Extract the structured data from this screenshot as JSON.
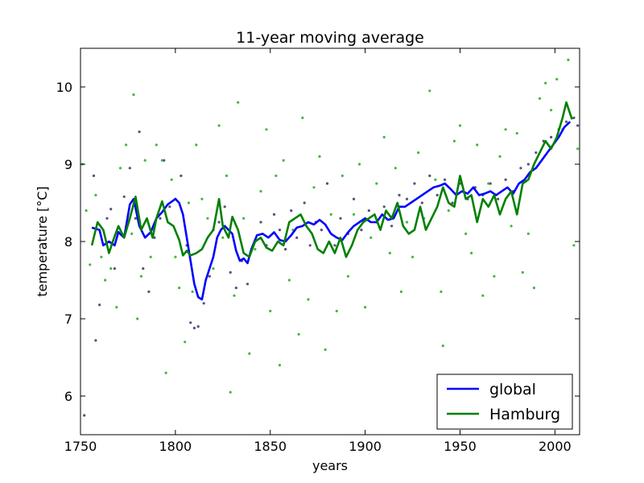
{
  "chart_data": {
    "type": "line",
    "title": "11-year moving average",
    "xlabel": "years",
    "ylabel": "temperature [°C]",
    "xlim": [
      1750,
      2013
    ],
    "ylim": [
      5.5,
      10.5
    ],
    "x_ticks": [
      "1750",
      "1800",
      "1850",
      "1900",
      "1950",
      "2000"
    ],
    "y_ticks": [
      "6",
      "7",
      "8",
      "9",
      "10"
    ],
    "grid": false,
    "legend_position": "lower-right",
    "series": [
      {
        "name": "global",
        "color": "#0000ff",
        "x": [
          1756,
          1760,
          1762,
          1765,
          1768,
          1770,
          1773,
          1776,
          1778,
          1781,
          1784,
          1787,
          1790,
          1793,
          1796,
          1800,
          1802,
          1804,
          1806,
          1808,
          1810,
          1812,
          1814,
          1816,
          1818,
          1820,
          1822,
          1824,
          1826,
          1828,
          1830,
          1832,
          1834,
          1836,
          1838,
          1840,
          1843,
          1846,
          1849,
          1852,
          1855,
          1858,
          1861,
          1864,
          1867,
          1870,
          1873,
          1876,
          1879,
          1882,
          1885,
          1888,
          1891,
          1894,
          1897,
          1900,
          1903,
          1906,
          1909,
          1912,
          1915,
          1918,
          1921,
          1924,
          1927,
          1930,
          1933,
          1936,
          1939,
          1942,
          1945,
          1948,
          1951,
          1954,
          1957,
          1960,
          1963,
          1966,
          1969,
          1972,
          1975,
          1978,
          1981,
          1984,
          1987,
          1990,
          1993,
          1996,
          1999,
          2002,
          2005,
          2008
        ],
        "values": [
          8.18,
          8.15,
          7.95,
          8.0,
          7.95,
          8.12,
          8.05,
          8.48,
          8.55,
          8.2,
          8.05,
          8.12,
          8.3,
          8.38,
          8.48,
          8.55,
          8.5,
          8.35,
          8.05,
          7.75,
          7.45,
          7.28,
          7.25,
          7.5,
          7.65,
          7.8,
          8.05,
          8.15,
          8.2,
          8.15,
          8.1,
          7.88,
          7.75,
          7.78,
          7.72,
          7.9,
          8.08,
          8.1,
          8.05,
          8.12,
          8.02,
          8.0,
          8.08,
          8.18,
          8.2,
          8.25,
          8.22,
          8.28,
          8.22,
          8.1,
          8.05,
          8.02,
          8.12,
          8.2,
          8.25,
          8.3,
          8.25,
          8.25,
          8.35,
          8.28,
          8.3,
          8.45,
          8.45,
          8.5,
          8.55,
          8.6,
          8.65,
          8.7,
          8.72,
          8.75,
          8.68,
          8.6,
          8.65,
          8.62,
          8.7,
          8.6,
          8.62,
          8.65,
          8.6,
          8.65,
          8.7,
          8.62,
          8.75,
          8.8,
          8.9,
          8.95,
          9.05,
          9.15,
          9.25,
          9.35,
          9.48,
          9.55
        ]
      },
      {
        "name": "Hamburg",
        "color": "#008000",
        "x": [
          1756,
          1759,
          1762,
          1765,
          1767,
          1770,
          1773,
          1776,
          1779,
          1782,
          1785,
          1788,
          1790,
          1793,
          1796,
          1799,
          1802,
          1804,
          1806,
          1808,
          1811,
          1814,
          1817,
          1820,
          1823,
          1825,
          1828,
          1830,
          1833,
          1836,
          1839,
          1842,
          1845,
          1848,
          1851,
          1854,
          1857,
          1860,
          1863,
          1866,
          1869,
          1872,
          1875,
          1878,
          1881,
          1884,
          1887,
          1890,
          1893,
          1896,
          1899,
          1902,
          1905,
          1908,
          1911,
          1914,
          1917,
          1920,
          1923,
          1926,
          1929,
          1932,
          1935,
          1938,
          1941,
          1944,
          1947,
          1950,
          1953,
          1956,
          1959,
          1962,
          1965,
          1968,
          1971,
          1974,
          1977,
          1980,
          1983,
          1986,
          1989,
          1992,
          1995,
          1998,
          2001,
          2004,
          2006,
          2009
        ],
        "values": [
          7.95,
          8.25,
          8.15,
          7.85,
          8.0,
          8.2,
          8.05,
          8.3,
          8.58,
          8.15,
          8.3,
          8.05,
          8.3,
          8.52,
          8.25,
          8.2,
          8.02,
          7.82,
          7.88,
          7.82,
          7.85,
          7.9,
          8.05,
          8.15,
          8.55,
          8.2,
          8.05,
          8.32,
          8.15,
          7.85,
          7.8,
          8.0,
          8.05,
          7.92,
          7.88,
          8.0,
          7.95,
          8.25,
          8.3,
          8.35,
          8.2,
          8.1,
          7.9,
          7.85,
          8.0,
          7.85,
          8.05,
          7.8,
          7.95,
          8.15,
          8.25,
          8.3,
          8.35,
          8.15,
          8.4,
          8.3,
          8.5,
          8.2,
          8.1,
          8.15,
          8.45,
          8.15,
          8.3,
          8.45,
          8.7,
          8.5,
          8.45,
          8.85,
          8.55,
          8.6,
          8.25,
          8.55,
          8.45,
          8.6,
          8.35,
          8.55,
          8.65,
          8.35,
          8.75,
          8.8,
          9.0,
          9.15,
          9.3,
          9.2,
          9.35,
          9.6,
          9.8,
          9.58
        ]
      }
    ],
    "scatter_series": [
      {
        "color": "#333366",
        "points": [
          [
            1752,
            5.75
          ],
          [
            1757,
            8.85
          ],
          [
            1758,
            6.72
          ],
          [
            1760,
            7.18
          ],
          [
            1764,
            8.3
          ],
          [
            1766,
            8.42
          ],
          [
            1768,
            7.65
          ],
          [
            1770,
            8.12
          ],
          [
            1773,
            8.58
          ],
          [
            1776,
            8.95
          ],
          [
            1779,
            8.3
          ],
          [
            1781,
            9.42
          ],
          [
            1783,
            7.65
          ],
          [
            1786,
            7.35
          ],
          [
            1789,
            8.05
          ],
          [
            1792,
            8.3
          ],
          [
            1794,
            9.05
          ],
          [
            1797,
            8.45
          ],
          [
            1800,
            8.55
          ],
          [
            1803,
            8.85
          ],
          [
            1806,
            7.95
          ],
          [
            1808,
            6.95
          ],
          [
            1810,
            6.88
          ],
          [
            1812,
            6.9
          ],
          [
            1815,
            7.2
          ],
          [
            1818,
            7.55
          ],
          [
            1820,
            8.15
          ],
          [
            1823,
            8.25
          ],
          [
            1826,
            8.45
          ],
          [
            1829,
            7.6
          ],
          [
            1832,
            7.4
          ],
          [
            1835,
            7.75
          ],
          [
            1838,
            7.45
          ],
          [
            1842,
            8.0
          ],
          [
            1845,
            8.25
          ],
          [
            1848,
            7.95
          ],
          [
            1852,
            8.35
          ],
          [
            1855,
            8.15
          ],
          [
            1858,
            7.9
          ],
          [
            1861,
            8.4
          ],
          [
            1864,
            8.05
          ],
          [
            1868,
            8.5
          ],
          [
            1871,
            7.95
          ],
          [
            1874,
            8.25
          ],
          [
            1877,
            8.15
          ],
          [
            1880,
            8.75
          ],
          [
            1884,
            7.95
          ],
          [
            1887,
            8.3
          ],
          [
            1891,
            8.1
          ],
          [
            1894,
            8.55
          ],
          [
            1898,
            8.15
          ],
          [
            1902,
            8.4
          ],
          [
            1906,
            8.25
          ],
          [
            1910,
            8.45
          ],
          [
            1914,
            8.2
          ],
          [
            1918,
            8.6
          ],
          [
            1922,
            8.55
          ],
          [
            1926,
            8.75
          ],
          [
            1930,
            8.5
          ],
          [
            1934,
            8.85
          ],
          [
            1938,
            8.6
          ],
          [
            1942,
            8.8
          ],
          [
            1946,
            8.5
          ],
          [
            1950,
            8.75
          ],
          [
            1954,
            8.55
          ],
          [
            1958,
            8.7
          ],
          [
            1962,
            8.6
          ],
          [
            1966,
            8.75
          ],
          [
            1970,
            8.55
          ],
          [
            1974,
            8.8
          ],
          [
            1978,
            8.65
          ],
          [
            1982,
            8.95
          ],
          [
            1986,
            9.0
          ],
          [
            1990,
            9.15
          ],
          [
            1994,
            9.3
          ],
          [
            1998,
            9.35
          ],
          [
            2002,
            9.45
          ],
          [
            2006,
            9.55
          ],
          [
            2010,
            9.6
          ],
          [
            2012,
            9.5
          ]
        ]
      },
      {
        "color": "#22aa22",
        "points": [
          [
            1751,
            9.0
          ],
          [
            1753,
            8.4
          ],
          [
            1755,
            7.7
          ],
          [
            1758,
            8.6
          ],
          [
            1761,
            7.8
          ],
          [
            1763,
            7.5
          ],
          [
            1766,
            7.65
          ],
          [
            1769,
            7.15
          ],
          [
            1771,
            8.95
          ],
          [
            1774,
            9.25
          ],
          [
            1777,
            8.1
          ],
          [
            1778,
            9.9
          ],
          [
            1780,
            7.0
          ],
          [
            1782,
            7.55
          ],
          [
            1784,
            9.05
          ],
          [
            1787,
            7.8
          ],
          [
            1790,
            9.25
          ],
          [
            1793,
            9.05
          ],
          [
            1795,
            6.3
          ],
          [
            1798,
            8.8
          ],
          [
            1800,
            7.8
          ],
          [
            1802,
            7.4
          ],
          [
            1805,
            6.7
          ],
          [
            1807,
            8.5
          ],
          [
            1809,
            7.35
          ],
          [
            1811,
            9.25
          ],
          [
            1814,
            8.55
          ],
          [
            1817,
            8.3
          ],
          [
            1820,
            7.65
          ],
          [
            1823,
            9.5
          ],
          [
            1825,
            8.05
          ],
          [
            1827,
            8.85
          ],
          [
            1829,
            6.05
          ],
          [
            1831,
            7.3
          ],
          [
            1833,
            9.8
          ],
          [
            1836,
            8.3
          ],
          [
            1839,
            6.55
          ],
          [
            1842,
            7.9
          ],
          [
            1845,
            8.65
          ],
          [
            1848,
            9.45
          ],
          [
            1850,
            7.1
          ],
          [
            1853,
            8.85
          ],
          [
            1855,
            6.4
          ],
          [
            1857,
            9.05
          ],
          [
            1860,
            7.5
          ],
          [
            1862,
            8.15
          ],
          [
            1865,
            6.8
          ],
          [
            1867,
            9.6
          ],
          [
            1870,
            7.25
          ],
          [
            1873,
            8.7
          ],
          [
            1876,
            9.1
          ],
          [
            1879,
            6.6
          ],
          [
            1882,
            8.35
          ],
          [
            1885,
            7.1
          ],
          [
            1888,
            8.85
          ],
          [
            1891,
            7.55
          ],
          [
            1894,
            8.35
          ],
          [
            1897,
            9.0
          ],
          [
            1900,
            7.15
          ],
          [
            1903,
            8.05
          ],
          [
            1906,
            8.75
          ],
          [
            1910,
            9.35
          ],
          [
            1913,
            7.85
          ],
          [
            1916,
            8.95
          ],
          [
            1919,
            7.35
          ],
          [
            1922,
            8.25
          ],
          [
            1925,
            7.8
          ],
          [
            1928,
            9.15
          ],
          [
            1931,
            8.3
          ],
          [
            1934,
            9.95
          ],
          [
            1937,
            8.8
          ],
          [
            1940,
            7.35
          ],
          [
            1941,
            6.65
          ],
          [
            1944,
            8.4
          ],
          [
            1947,
            9.3
          ],
          [
            1950,
            9.5
          ],
          [
            1953,
            8.1
          ],
          [
            1956,
            7.85
          ],
          [
            1959,
            9.25
          ],
          [
            1962,
            7.3
          ],
          [
            1965,
            8.75
          ],
          [
            1968,
            7.55
          ],
          [
            1971,
            9.1
          ],
          [
            1974,
            9.45
          ],
          [
            1977,
            8.2
          ],
          [
            1980,
            9.4
          ],
          [
            1983,
            7.6
          ],
          [
            1986,
            8.1
          ],
          [
            1989,
            7.4
          ],
          [
            1992,
            9.85
          ],
          [
            1995,
            10.05
          ],
          [
            1998,
            9.7
          ],
          [
            2001,
            10.1
          ],
          [
            2004,
            9.45
          ],
          [
            2007,
            10.35
          ],
          [
            2010,
            7.95
          ],
          [
            2012,
            9.2
          ]
        ]
      }
    ]
  }
}
